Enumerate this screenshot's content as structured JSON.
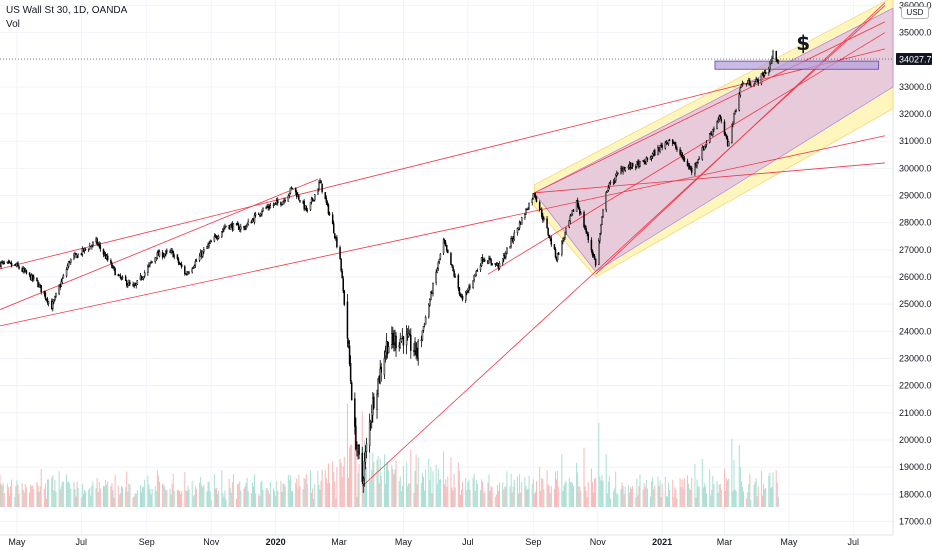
{
  "header": {
    "symbol_line": "US Wall St 30, 1D, OANDA",
    "indicator": "Vol"
  },
  "price_scale": {
    "currency": "USD",
    "last_price_label": "34027.7"
  },
  "annotation": {
    "dollar_sign": "$"
  },
  "colors": {
    "candle": "#000000",
    "trendline": "#f23645",
    "channel_outer": "#fff3a8",
    "channel_inner": "#d6a8f0",
    "box_fill": "#b39ddb",
    "vol_up": "#f7b9b9",
    "vol_down": "#aadfd3"
  },
  "chart_data": {
    "type": "candlestick",
    "y_axis": {
      "ticks": [
        17000,
        18000,
        19000,
        20000,
        21000,
        22000,
        23000,
        24000,
        25000,
        26000,
        27000,
        28000,
        29000,
        30000,
        31000,
        32000,
        33000,
        34000,
        35000,
        36000
      ],
      "tick_labels": [
        "17000.0",
        "18000.0",
        "19000.0",
        "20000.0",
        "21000.0",
        "22000.0",
        "23000.0",
        "24000.0",
        "25000.0",
        "26000.0",
        "27000.0",
        "28000.0",
        "29000.0",
        "30000.0",
        "31000.0",
        "32000.0",
        "33000.0",
        "34000.0",
        "35000.0",
        "36000.0"
      ],
      "ylim": [
        16500,
        36200
      ]
    },
    "x_axis": {
      "ticks": [
        {
          "label": "May",
          "date": "2019-05-01",
          "bold": false
        },
        {
          "label": "Jul",
          "date": "2019-07-01",
          "bold": false
        },
        {
          "label": "Sep",
          "date": "2019-09-01",
          "bold": false
        },
        {
          "label": "Nov",
          "date": "2019-11-01",
          "bold": false
        },
        {
          "label": "2020",
          "date": "2020-01-01",
          "bold": true
        },
        {
          "label": "Mar",
          "date": "2020-03-01",
          "bold": false
        },
        {
          "label": "May",
          "date": "2020-05-01",
          "bold": false
        },
        {
          "label": "Jul",
          "date": "2020-07-01",
          "bold": false
        },
        {
          "label": "Sep",
          "date": "2020-09-01",
          "bold": false
        },
        {
          "label": "Nov",
          "date": "2020-11-01",
          "bold": false
        },
        {
          "label": "2021",
          "date": "2021-01-01",
          "bold": true
        },
        {
          "label": "Mar",
          "date": "2021-03-01",
          "bold": false
        },
        {
          "label": "May",
          "date": "2021-05-01",
          "bold": false
        },
        {
          "label": "Jul",
          "date": "2021-07-01",
          "bold": false
        }
      ]
    },
    "price_path": [
      [
        "2019-04-15",
        26500
      ],
      [
        "2019-05-01",
        26400
      ],
      [
        "2019-05-20",
        25800
      ],
      [
        "2019-06-03",
        24900
      ],
      [
        "2019-06-20",
        26600
      ],
      [
        "2019-07-15",
        27300
      ],
      [
        "2019-08-05",
        26000
      ],
      [
        "2019-08-20",
        25600
      ],
      [
        "2019-09-10",
        26800
      ],
      [
        "2019-09-25",
        26900
      ],
      [
        "2019-10-08",
        26100
      ],
      [
        "2019-10-28",
        27100
      ],
      [
        "2019-11-15",
        27900
      ],
      [
        "2019-12-02",
        27800
      ],
      [
        "2019-12-20",
        28500
      ],
      [
        "2020-01-08",
        28800
      ],
      [
        "2020-01-17",
        29300
      ],
      [
        "2020-01-31",
        28400
      ],
      [
        "2020-02-12",
        29500
      ],
      [
        "2020-02-24",
        27900
      ],
      [
        "2020-03-02",
        26700
      ],
      [
        "2020-03-09",
        23800
      ],
      [
        "2020-03-16",
        20200
      ],
      [
        "2020-03-23",
        18500
      ],
      [
        "2020-04-01",
        21200
      ],
      [
        "2020-04-15",
        23500
      ],
      [
        "2020-05-01",
        23800
      ],
      [
        "2020-05-14",
        23200
      ],
      [
        "2020-06-08",
        27300
      ],
      [
        "2020-06-26",
        25100
      ],
      [
        "2020-07-15",
        26700
      ],
      [
        "2020-07-31",
        26400
      ],
      [
        "2020-08-17",
        27800
      ],
      [
        "2020-09-02",
        29100
      ],
      [
        "2020-09-23",
        26700
      ],
      [
        "2020-10-12",
        28800
      ],
      [
        "2020-10-30",
        26500
      ],
      [
        "2020-11-09",
        29200
      ],
      [
        "2020-11-24",
        30000
      ],
      [
        "2020-12-15",
        30200
      ],
      [
        "2021-01-08",
        31100
      ],
      [
        "2021-01-29",
        29900
      ],
      [
        "2021-02-24",
        31900
      ],
      [
        "2021-03-04",
        30900
      ],
      [
        "2021-03-17",
        33100
      ],
      [
        "2021-04-01",
        33200
      ],
      [
        "2021-04-12",
        33700
      ],
      [
        "2021-04-16",
        34200
      ],
      [
        "2021-04-21",
        34000
      ]
    ],
    "volume_note": "volume histogram pane along bottom, relative heights only",
    "last_price": 34027.7,
    "grid": true,
    "drawings": [
      "ascending trendlines",
      "pitchfork channel (yellow/purple)",
      "horizontal resistance box near 34000",
      "dollar sign marker"
    ]
  }
}
